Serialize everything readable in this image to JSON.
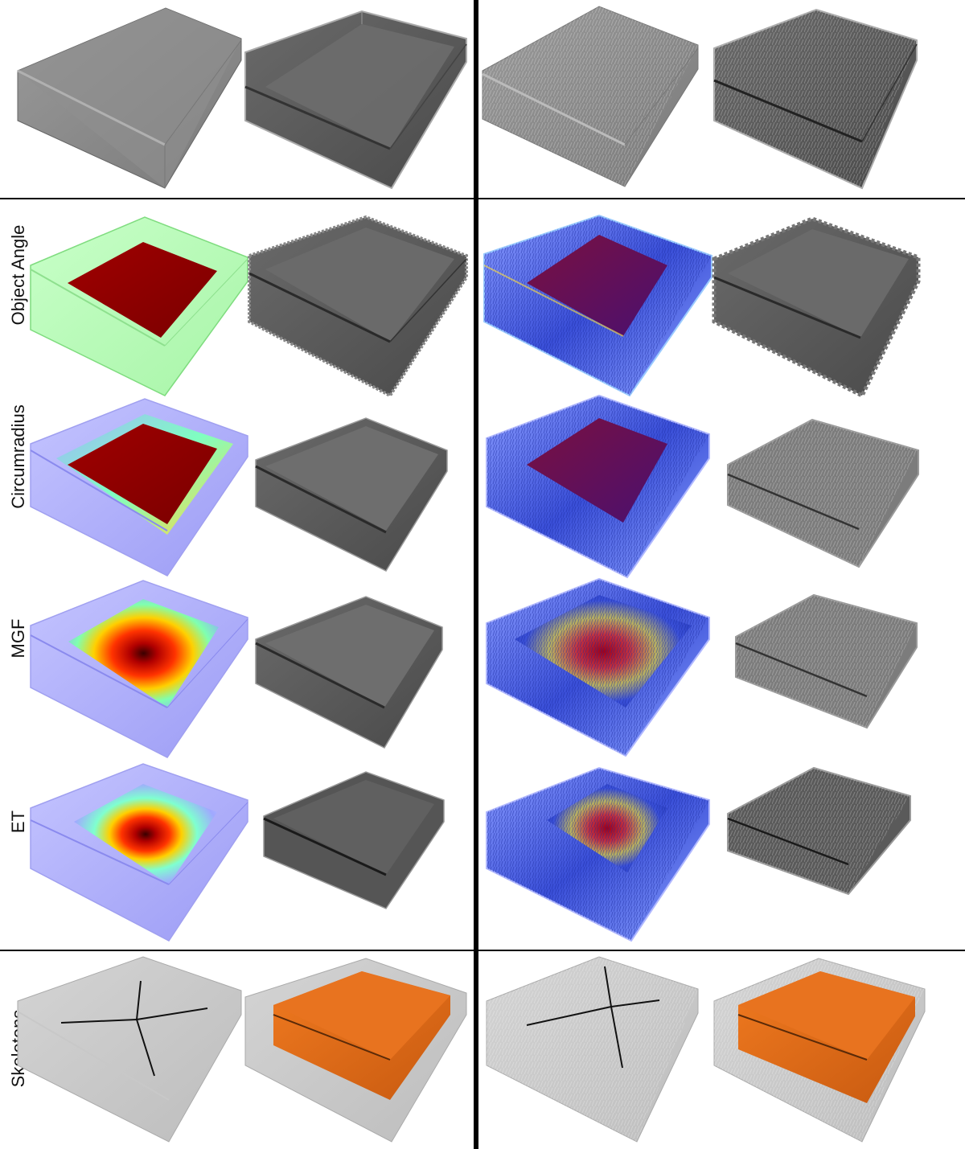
{
  "row_labels": {
    "object_angle": "Object Angle",
    "circumradius": "Circumradius",
    "mgf": "MGF",
    "et": "ET",
    "skeletons": "Skeletons"
  },
  "colors": {
    "separator": "#000000",
    "box_gray": "#8a8a8a",
    "box_dark": "#555555",
    "heat_red": "#8b0000",
    "heat_yellow": "#ffff33",
    "heat_blue": "#6a6aff",
    "medial_orange": "#e8731f",
    "skeleton_line": "#111111",
    "object_angle_green": "#b8ffb8"
  },
  "panel_icons": {
    "box": "translucent-box-icon",
    "heatmap": "heatmap-box-icon",
    "skeleton": "skeleton-lines-icon",
    "medial_sheet": "medial-sheet-icon"
  }
}
